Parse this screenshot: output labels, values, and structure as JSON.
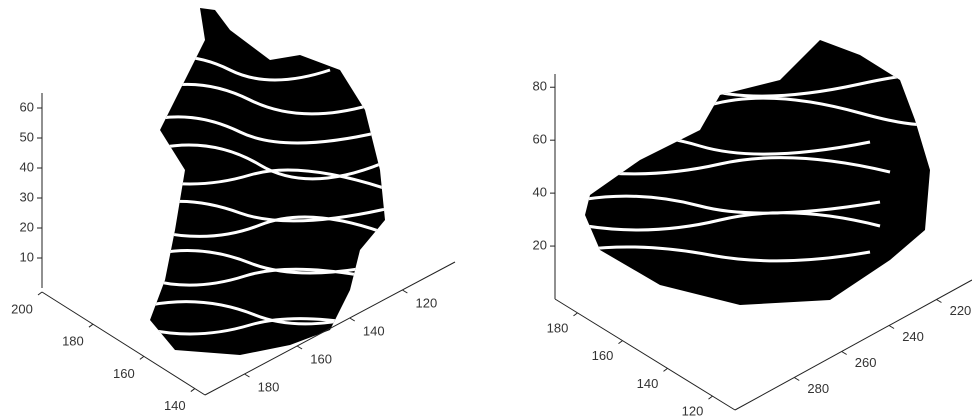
{
  "chart_data": [
    {
      "type": "surface3d",
      "zlim": [
        0,
        65
      ],
      "zticks": [
        10,
        20,
        30,
        40,
        50,
        60
      ],
      "xlim": [
        136,
        200
      ],
      "xticks": [
        140,
        160,
        180,
        200
      ],
      "ylim": [
        100,
        195
      ],
      "yticks": [
        120,
        140,
        160,
        180
      ]
    },
    {
      "type": "surface3d",
      "zlim": [
        0,
        85
      ],
      "zticks": [
        20,
        40,
        60,
        80
      ],
      "xlim": [
        110,
        190
      ],
      "xticks": [
        120,
        140,
        160,
        180
      ],
      "ylim": [
        205,
        305
      ],
      "yticks": [
        220,
        240,
        260,
        280
      ]
    }
  ]
}
